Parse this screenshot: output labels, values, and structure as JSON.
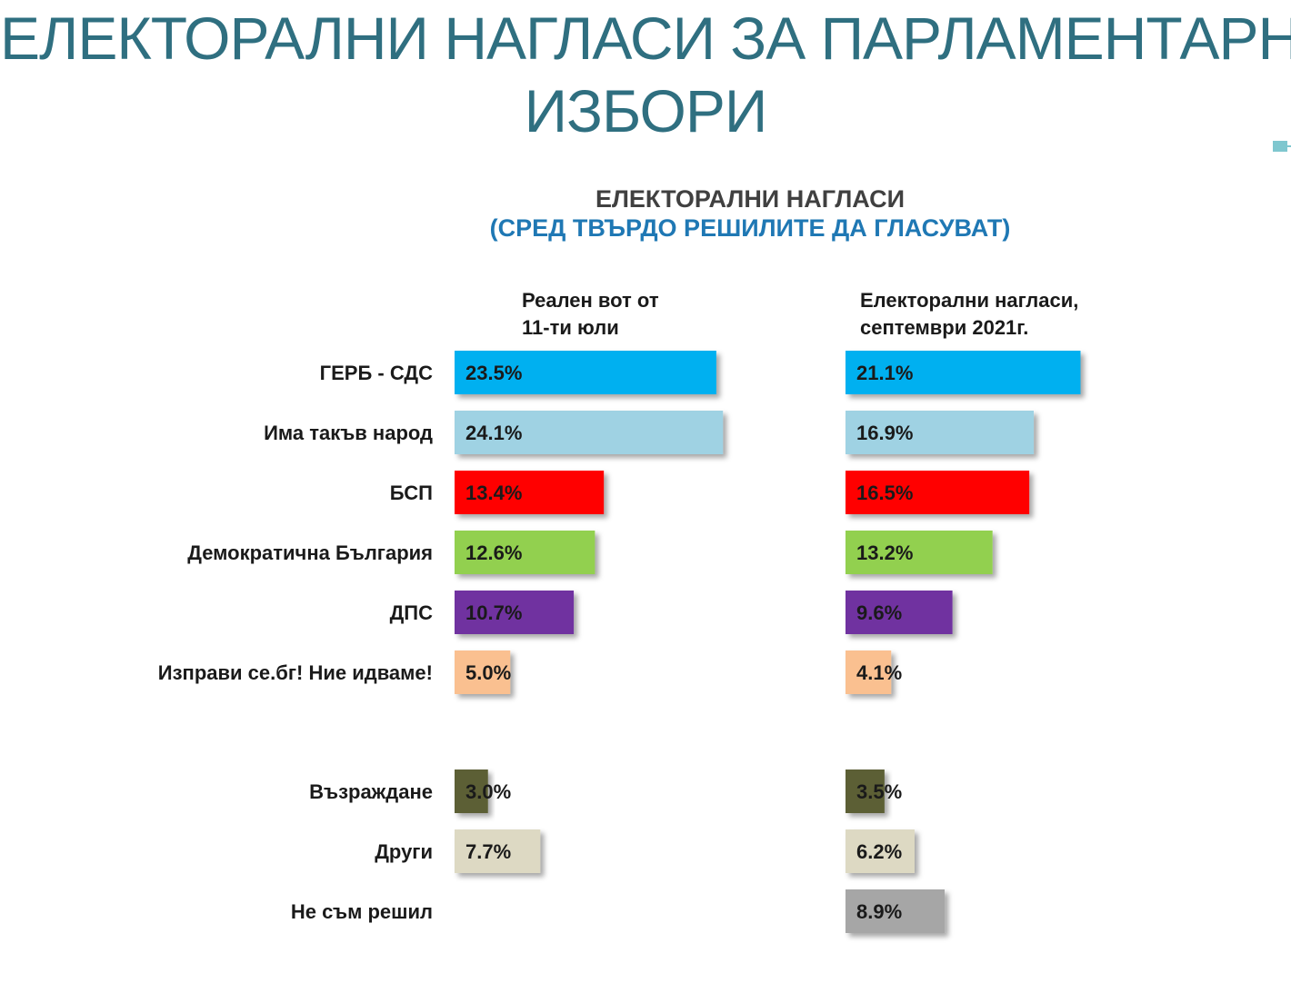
{
  "slide": {
    "title_line1": "ЕЛЕКТОРАЛНИ НАГЛАСИ ЗА ПАРЛАМЕНТАРНИ",
    "title_line2": "ИЗБОРИ"
  },
  "chart_data": {
    "type": "bar",
    "orientation": "horizontal",
    "title": "ЕЛЕКТОРАЛНИ НАГЛАСИ",
    "subtitle": "(СРЕД ТВЪРДО РЕШИЛИТЕ ДА ГЛАСУВАТ)",
    "unit": "%",
    "categories": [
      "ГЕРБ - СДС",
      "Има такъв народ",
      "БСП",
      "Демократична България",
      "ДПС",
      "Изправи се.бг! Ние идваме!",
      "Възраждане",
      "Други",
      "Не съм решил"
    ],
    "colors": [
      "#00b0f0",
      "#9fd2e3",
      "#ff0000",
      "#92d050",
      "#7030a0",
      "#fac090",
      "#5b5f35",
      "#ddd9c3",
      "#a6a6a6"
    ],
    "series": [
      {
        "name": "Реален вот от 11-ти юли",
        "header_lines": [
          "Реален вот от",
          "11-ти юли"
        ],
        "values": [
          23.5,
          24.1,
          13.4,
          12.6,
          10.7,
          5.0,
          3.0,
          7.7,
          null
        ],
        "labels": [
          "23.5%",
          "24.1%",
          "13.4%",
          "12.6%",
          "10.7%",
          "5.0%",
          "3.0%",
          "7.7%",
          ""
        ]
      },
      {
        "name": "Електорални нагласи, септември 2021г.",
        "header_lines": [
          "Електорални нагласи,",
          "септември 2021г."
        ],
        "values": [
          21.1,
          16.9,
          16.5,
          13.2,
          9.6,
          4.1,
          3.5,
          6.2,
          8.9
        ],
        "labels": [
          "21.1%",
          "16.9%",
          "16.5%",
          "13.2%",
          "9.6%",
          "4.1%",
          "3.5%",
          "6.2%",
          "8.9%"
        ]
      }
    ],
    "grid": false,
    "legend": "none"
  }
}
